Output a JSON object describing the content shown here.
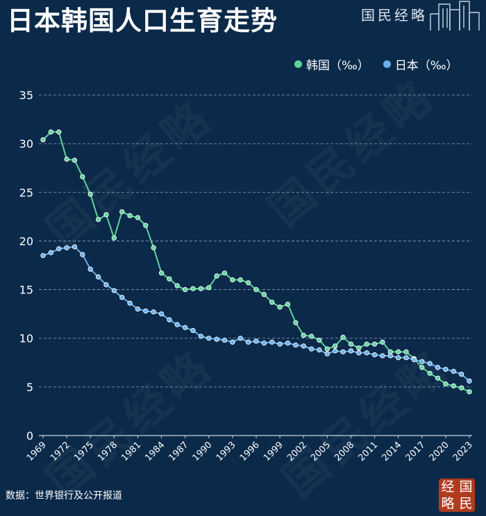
{
  "header": {
    "title": "日本韩国人口生育走势",
    "brand": "国民经略"
  },
  "footer": {
    "source": "数据：世界银行及公开报道",
    "stamp_chars": [
      "经",
      "国",
      "略",
      "民"
    ]
  },
  "watermark_text": "国民经略",
  "colors": {
    "background": "#0b2a4a",
    "korea": "#5fd39b",
    "japan": "#6aaeea",
    "grid": "#8fa6bf",
    "stamp": "#b23a1e"
  },
  "chart_data": {
    "type": "line",
    "title": "日本韩国人口生育走势",
    "xlabel": "",
    "ylabel": "",
    "ylim": [
      0,
      35
    ],
    "yticks": [
      "0",
      "5",
      "10",
      "15",
      "20",
      "25",
      "30",
      "35"
    ],
    "xticks": [
      "1969",
      "1972",
      "1975",
      "1978",
      "1981",
      "1984",
      "1987",
      "1990",
      "1993",
      "1996",
      "1999",
      "2002",
      "2005",
      "2008",
      "2011",
      "2014",
      "2017",
      "2020",
      "2023"
    ],
    "grid": true,
    "legend_position": "top-right",
    "x": [
      1969,
      1970,
      1971,
      1972,
      1973,
      1974,
      1975,
      1976,
      1977,
      1978,
      1979,
      1980,
      1981,
      1982,
      1983,
      1984,
      1985,
      1986,
      1987,
      1988,
      1989,
      1990,
      1991,
      1992,
      1993,
      1994,
      1995,
      1996,
      1997,
      1998,
      1999,
      2000,
      2001,
      2002,
      2003,
      2004,
      2005,
      2006,
      2007,
      2008,
      2009,
      2010,
      2011,
      2012,
      2013,
      2014,
      2015,
      2016,
      2017,
      2018,
      2019,
      2020,
      2021,
      2022,
      2023
    ],
    "series": [
      {
        "name": "韩国（‰）",
        "color": "#5fd39b",
        "values": [
          30.4,
          31.2,
          31.2,
          28.4,
          28.3,
          26.6,
          24.8,
          22.2,
          22.7,
          20.3,
          23.0,
          22.6,
          22.4,
          21.6,
          19.3,
          16.7,
          16.1,
          15.4,
          15.0,
          15.1,
          15.1,
          15.2,
          16.4,
          16.7,
          16.0,
          16.0,
          15.7,
          15.0,
          14.5,
          13.7,
          13.2,
          13.5,
          11.6,
          10.3,
          10.2,
          9.8,
          8.9,
          9.2,
          10.1,
          9.4,
          9.0,
          9.4,
          9.4,
          9.6,
          8.6,
          8.6,
          8.6,
          7.9,
          7.0,
          6.4,
          5.9,
          5.3,
          5.1,
          4.9,
          4.5
        ]
      },
      {
        "name": "日本（‰）",
        "color": "#6aaeea",
        "values": [
          18.5,
          18.8,
          19.2,
          19.3,
          19.4,
          18.6,
          17.1,
          16.3,
          15.5,
          14.9,
          14.2,
          13.6,
          13.0,
          12.8,
          12.7,
          12.5,
          11.9,
          11.4,
          11.1,
          10.8,
          10.2,
          10.0,
          9.9,
          9.8,
          9.6,
          10.0,
          9.6,
          9.7,
          9.5,
          9.6,
          9.4,
          9.5,
          9.3,
          9.2,
          8.9,
          8.8,
          8.4,
          8.7,
          8.6,
          8.7,
          8.5,
          8.5,
          8.3,
          8.2,
          8.2,
          8.0,
          8.0,
          7.8,
          7.6,
          7.4,
          7.0,
          6.8,
          6.6,
          6.3,
          5.6
        ]
      }
    ]
  }
}
